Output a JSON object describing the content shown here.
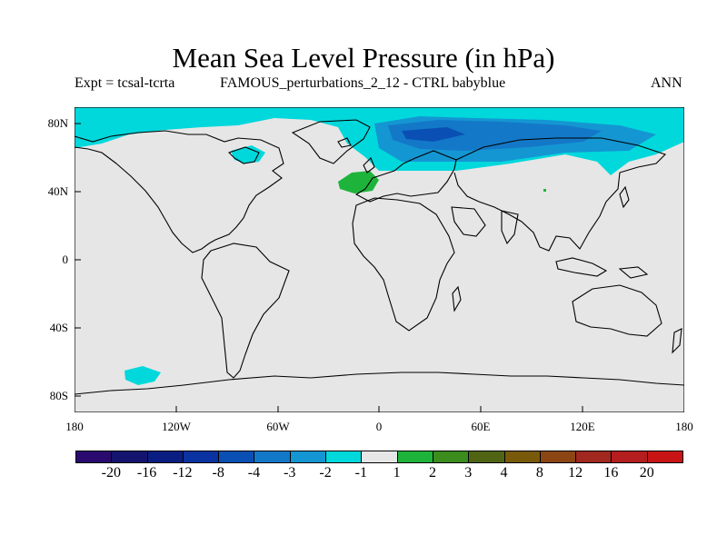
{
  "title": "Mean Sea Level Pressure (in hPa)",
  "left_subtitle": "Expt = tcsal-tcrta",
  "center_subtitle": "FAMOUS_perturbations_2_12 - CTRL babyblue",
  "right_subtitle": "ANN",
  "lat_labels": [
    "80N",
    "40N",
    "0",
    "40S",
    "80S"
  ],
  "lon_labels": [
    "180",
    "120W",
    "60W",
    "0",
    "60E",
    "120E",
    "180"
  ],
  "colorbar": {
    "labels": [
      "-20",
      "-16",
      "-12",
      "-8",
      "-4",
      "-3",
      "-2",
      "-1",
      "1",
      "2",
      "3",
      "4",
      "8",
      "12",
      "16",
      "20"
    ],
    "colors": [
      "#2a0a6e",
      "#14146e",
      "#0a1e82",
      "#0a32a0",
      "#0a50b4",
      "#1478c8",
      "#1496d2",
      "#00d8dc",
      "#e6e6e6",
      "#1eb43c",
      "#3c8c1e",
      "#506414",
      "#785a0a",
      "#8c4614",
      "#a0281e",
      "#b41e1e",
      "#c81414"
    ]
  },
  "map_fields": {
    "background_value_range": "-1 to 1",
    "regions": [
      {
        "name": "arctic-cyan",
        "band": "-2 to -1"
      },
      {
        "name": "eurasia-arctic-blue",
        "band": "-3 to -2"
      },
      {
        "name": "eurasia-arctic-darkblue",
        "band": "-4 to -3"
      },
      {
        "name": "hudson-cyan",
        "band": "-2 to -1"
      },
      {
        "name": "atlantic-green",
        "band": "1 to 2"
      },
      {
        "name": "south-pacific-cyan",
        "band": "-2 to -1"
      }
    ]
  }
}
